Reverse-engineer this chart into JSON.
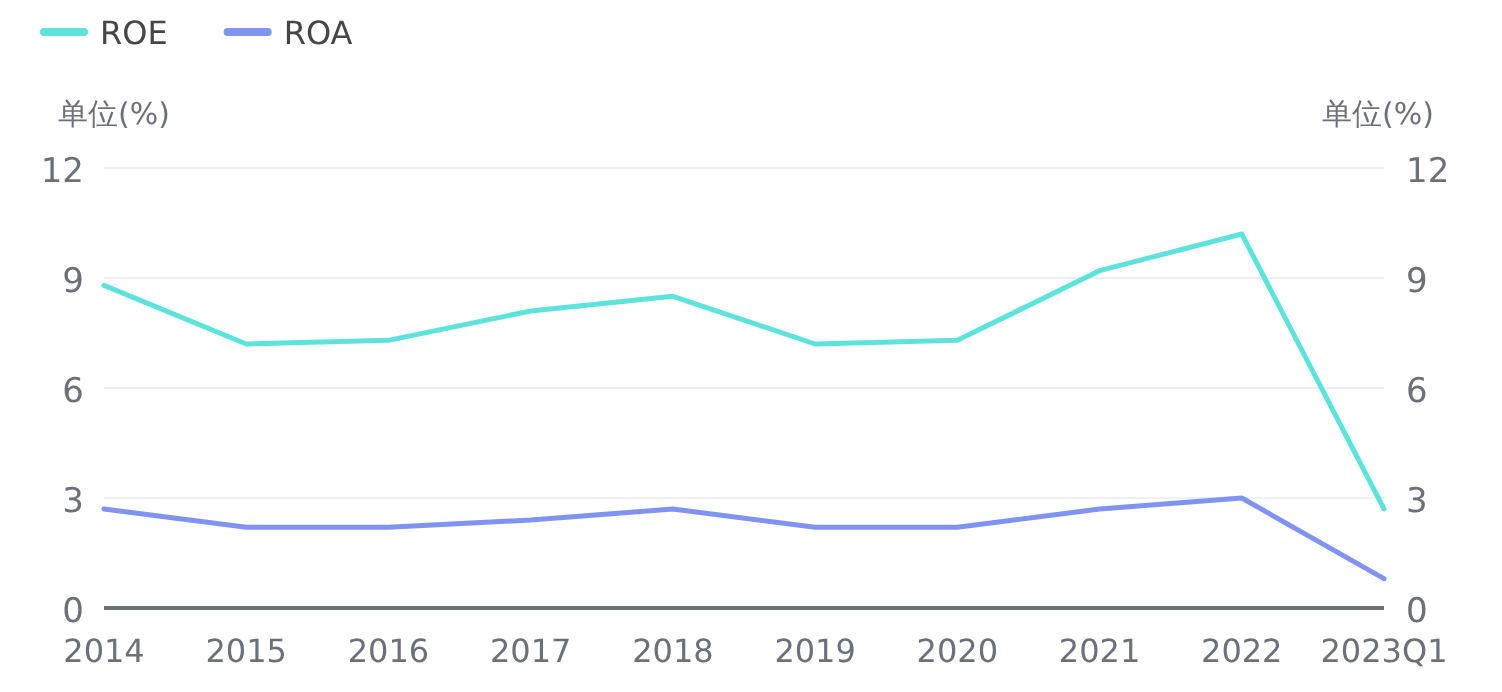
{
  "chart_data": {
    "type": "line",
    "categories": [
      "2014",
      "2015",
      "2016",
      "2017",
      "2018",
      "2019",
      "2020",
      "2021",
      "2022",
      "2023Q1"
    ],
    "series": [
      {
        "name": "ROE",
        "color": "#5ee3dc",
        "values": [
          8.8,
          7.2,
          7.3,
          8.1,
          8.5,
          7.2,
          7.3,
          9.2,
          10.2,
          2.7
        ]
      },
      {
        "name": "ROA",
        "color": "#8093f1",
        "values": [
          2.7,
          2.2,
          2.2,
          2.4,
          2.7,
          2.2,
          2.2,
          2.7,
          3.0,
          0.8
        ]
      }
    ],
    "ylabel": "单位(%)",
    "y2label": "单位(%)",
    "ylim": [
      0,
      12
    ],
    "yticks": [
      0,
      3,
      6,
      9,
      12
    ],
    "y2lim": [
      0,
      12
    ],
    "y2ticks": [
      0,
      3,
      6,
      9,
      12
    ],
    "grid": "y",
    "legend": "top left",
    "marker": "none",
    "line_style": "solid"
  }
}
